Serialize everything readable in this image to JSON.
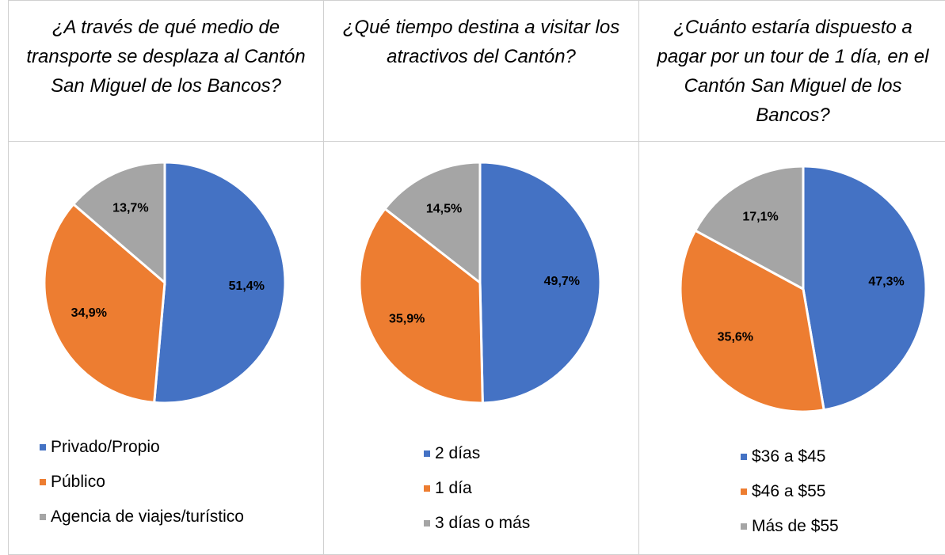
{
  "chart_data": [
    {
      "type": "pie",
      "title": "¿A través de qué medio de transporte se desplaza al Cantón San Miguel de los Bancos?",
      "categories": [
        "Privado/Propio",
        "Público",
        "Agencia de viajes/turístico"
      ],
      "values": [
        51.4,
        34.9,
        13.7
      ],
      "value_labels": [
        "51,4%",
        "34,9%",
        "13,7%"
      ],
      "colors": [
        "#4472c4",
        "#ed7d31",
        "#a5a5a5"
      ]
    },
    {
      "type": "pie",
      "title": "¿Qué tiempo destina a visitar los atractivos del Cantón?",
      "categories": [
        "2 días",
        "1 día",
        "3 días o más"
      ],
      "values": [
        49.7,
        35.9,
        14.5
      ],
      "value_labels": [
        "49,7%",
        "35,9%",
        "14,5%"
      ],
      "colors": [
        "#4472c4",
        "#ed7d31",
        "#a5a5a5"
      ]
    },
    {
      "type": "pie",
      "title": "¿Cuánto estaría dispuesto a pagar por un tour de 1 día, en el Cantón San Miguel de los Bancos?",
      "categories": [
        "$36 a $45",
        "$46 a $55",
        "Más de $55"
      ],
      "values": [
        47.3,
        35.6,
        17.1
      ],
      "value_labels": [
        "47,3%",
        "35,6%",
        "17,1%"
      ],
      "colors": [
        "#4472c4",
        "#ed7d31",
        "#a5a5a5"
      ]
    }
  ]
}
